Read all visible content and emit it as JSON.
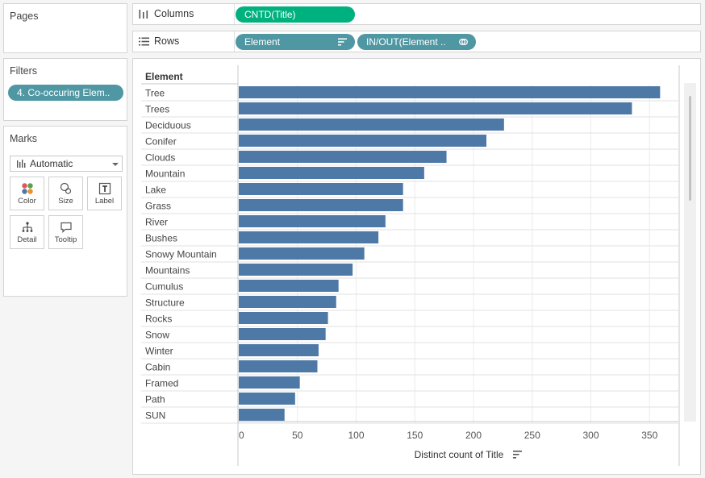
{
  "pages": {
    "title": "Pages"
  },
  "filters": {
    "title": "Filters",
    "items": [
      {
        "label": "4. Co-occuring Elem.."
      }
    ]
  },
  "marks": {
    "title": "Marks",
    "mark_type": "Automatic",
    "buttons": [
      {
        "label": "Color",
        "icon": "color-dots-icon"
      },
      {
        "label": "Size",
        "icon": "size-circles-icon"
      },
      {
        "label": "Label",
        "icon": "text-label-icon"
      },
      {
        "label": "Detail",
        "icon": "detail-tree-icon"
      },
      {
        "label": "Tooltip",
        "icon": "speech-bubble-icon"
      }
    ]
  },
  "shelves": {
    "columns": {
      "label": "Columns",
      "pills": [
        {
          "label": "CNTD(Title)"
        }
      ]
    },
    "rows": {
      "label": "Rows",
      "pills": [
        {
          "label": "Element"
        },
        {
          "label": "IN/OUT(Element .."
        }
      ]
    }
  },
  "colors": {
    "bar": "#4e79a7",
    "green_pill": "#00b180",
    "blue_pill": "#4f97a3"
  },
  "chart_data": {
    "type": "bar",
    "orientation": "horizontal",
    "row_header": "Element",
    "xlabel": "Distinct count of Title",
    "xlim": [
      0,
      375
    ],
    "x_ticks": [
      0,
      50,
      100,
      150,
      200,
      250,
      300,
      350
    ],
    "grid": true,
    "categories": [
      "Tree",
      "Trees",
      "Deciduous",
      "Conifer",
      "Clouds",
      "Mountain",
      "Lake",
      "Grass",
      "River",
      "Bushes",
      "Snowy Mountain",
      "Mountains",
      "Cumulus",
      "Structure",
      "Rocks",
      "Snow",
      "Winter",
      "Cabin",
      "Framed",
      "Path",
      "SUN"
    ],
    "values": [
      359,
      335,
      226,
      211,
      177,
      158,
      140,
      140,
      125,
      119,
      107,
      97,
      85,
      83,
      76,
      74,
      68,
      67,
      52,
      48,
      39
    ]
  }
}
